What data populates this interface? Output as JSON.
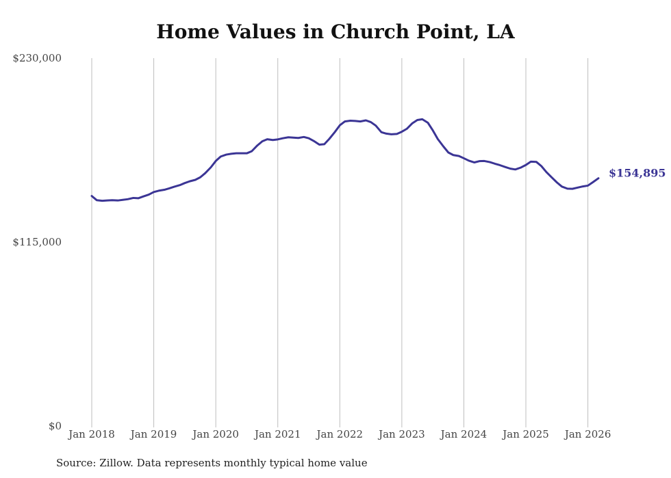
{
  "chart_data": {
    "type": "line",
    "title": "Home Values in Church Point, LA",
    "xlabel": "",
    "ylabel": "",
    "ylim": [
      0,
      230000
    ],
    "y_ticks": [
      {
        "value": 0,
        "label": "$0"
      },
      {
        "value": 115000,
        "label": "$115,000"
      },
      {
        "value": 230000,
        "label": "$230,000"
      }
    ],
    "x_range": [
      2018.0,
      2026.17
    ],
    "x_ticks": [
      {
        "value": 2018,
        "label": "Jan 2018"
      },
      {
        "value": 2019,
        "label": "Jan 2019"
      },
      {
        "value": 2020,
        "label": "Jan 2020"
      },
      {
        "value": 2021,
        "label": "Jan 2021"
      },
      {
        "value": 2022,
        "label": "Jan 2022"
      },
      {
        "value": 2023,
        "label": "Jan 2023"
      },
      {
        "value": 2024,
        "label": "Jan 2024"
      },
      {
        "value": 2025,
        "label": "Jan 2025"
      },
      {
        "value": 2026,
        "label": "Jan 2026"
      }
    ],
    "grid": "vertical",
    "series": [
      {
        "name": "Typical home value",
        "color": "#3b3595",
        "end_label": "$154,895",
        "x": [
          2018.0,
          2018.08,
          2018.17,
          2018.25,
          2018.33,
          2018.42,
          2018.5,
          2018.58,
          2018.67,
          2018.75,
          2018.83,
          2018.92,
          2019.0,
          2019.08,
          2019.17,
          2019.25,
          2019.33,
          2019.42,
          2019.5,
          2019.58,
          2019.67,
          2019.75,
          2019.83,
          2019.92,
          2020.0,
          2020.08,
          2020.17,
          2020.25,
          2020.33,
          2020.42,
          2020.5,
          2020.58,
          2020.67,
          2020.75,
          2020.83,
          2020.92,
          2021.0,
          2021.08,
          2021.17,
          2021.25,
          2021.33,
          2021.42,
          2021.5,
          2021.58,
          2021.67,
          2021.75,
          2021.83,
          2021.92,
          2022.0,
          2022.08,
          2022.17,
          2022.25,
          2022.33,
          2022.42,
          2022.5,
          2022.58,
          2022.67,
          2022.75,
          2022.83,
          2022.92,
          2023.0,
          2023.08,
          2023.17,
          2023.25,
          2023.33,
          2023.42,
          2023.5,
          2023.58,
          2023.67,
          2023.75,
          2023.83,
          2023.92,
          2024.0,
          2024.08,
          2024.17,
          2024.25,
          2024.33,
          2024.42,
          2024.5,
          2024.58,
          2024.67,
          2024.75,
          2024.83,
          2024.92,
          2025.0,
          2025.08,
          2025.17,
          2025.25,
          2025.33,
          2025.42,
          2025.5,
          2025.58,
          2025.67,
          2025.75,
          2025.83,
          2025.92,
          2026.0,
          2026.08,
          2026.17
        ],
        "values": [
          143800,
          141200,
          140800,
          141000,
          141200,
          141000,
          141400,
          141800,
          142600,
          142400,
          143500,
          144700,
          146300,
          147100,
          147700,
          148600,
          149600,
          150600,
          151900,
          153000,
          153900,
          155500,
          158100,
          161700,
          165700,
          168500,
          169700,
          170200,
          170500,
          170500,
          170500,
          171800,
          175400,
          178000,
          179300,
          178800,
          179200,
          179900,
          180500,
          180300,
          180100,
          180700,
          179900,
          178200,
          175900,
          176200,
          179500,
          183800,
          188000,
          190400,
          190900,
          190700,
          190400,
          191100,
          190000,
          187800,
          183700,
          182800,
          182400,
          182600,
          184000,
          185800,
          189300,
          191300,
          191800,
          189600,
          184800,
          179400,
          174800,
          171000,
          169400,
          168800,
          167400,
          165900,
          164800,
          165600,
          165700,
          165000,
          164000,
          163100,
          161900,
          160900,
          160400,
          161600,
          163200,
          165300,
          165100,
          162500,
          158800,
          155300,
          152300,
          149700,
          148400,
          148300,
          149000,
          149800,
          150300,
          152400,
          154895
        ]
      }
    ]
  },
  "footer": {
    "source": "Source: Zillow. Data represents monthly typical home value"
  }
}
